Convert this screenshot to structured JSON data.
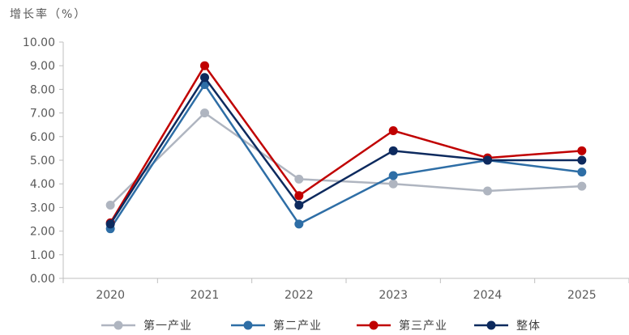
{
  "chart_data": {
    "type": "line",
    "ylabel": "增长率（%）",
    "categories": [
      "2020",
      "2021",
      "2022",
      "2023",
      "2024",
      "2025"
    ],
    "ylim": [
      0,
      10
    ],
    "ytick_labels": [
      "0.00",
      "1.00",
      "2.00",
      "3.00",
      "4.00",
      "5.00",
      "6.00",
      "7.00",
      "8.00",
      "9.00",
      "10.00"
    ],
    "grid": false,
    "legend_position": "bottom",
    "series": [
      {
        "name": "第一产业",
        "color": "#afb5c0",
        "values": [
          3.1,
          7.0,
          4.2,
          4.0,
          3.7,
          3.9
        ]
      },
      {
        "name": "第二产业",
        "color": "#2e6ea6",
        "values": [
          2.1,
          8.2,
          2.3,
          4.35,
          5.0,
          4.5
        ]
      },
      {
        "name": "第三产业",
        "color": "#c00000",
        "values": [
          2.35,
          9.0,
          3.5,
          6.25,
          5.1,
          5.4
        ]
      },
      {
        "name": "整体",
        "color": "#0d2a5e",
        "values": [
          2.3,
          8.5,
          3.1,
          5.4,
          5.0,
          5.0
        ]
      }
    ]
  }
}
